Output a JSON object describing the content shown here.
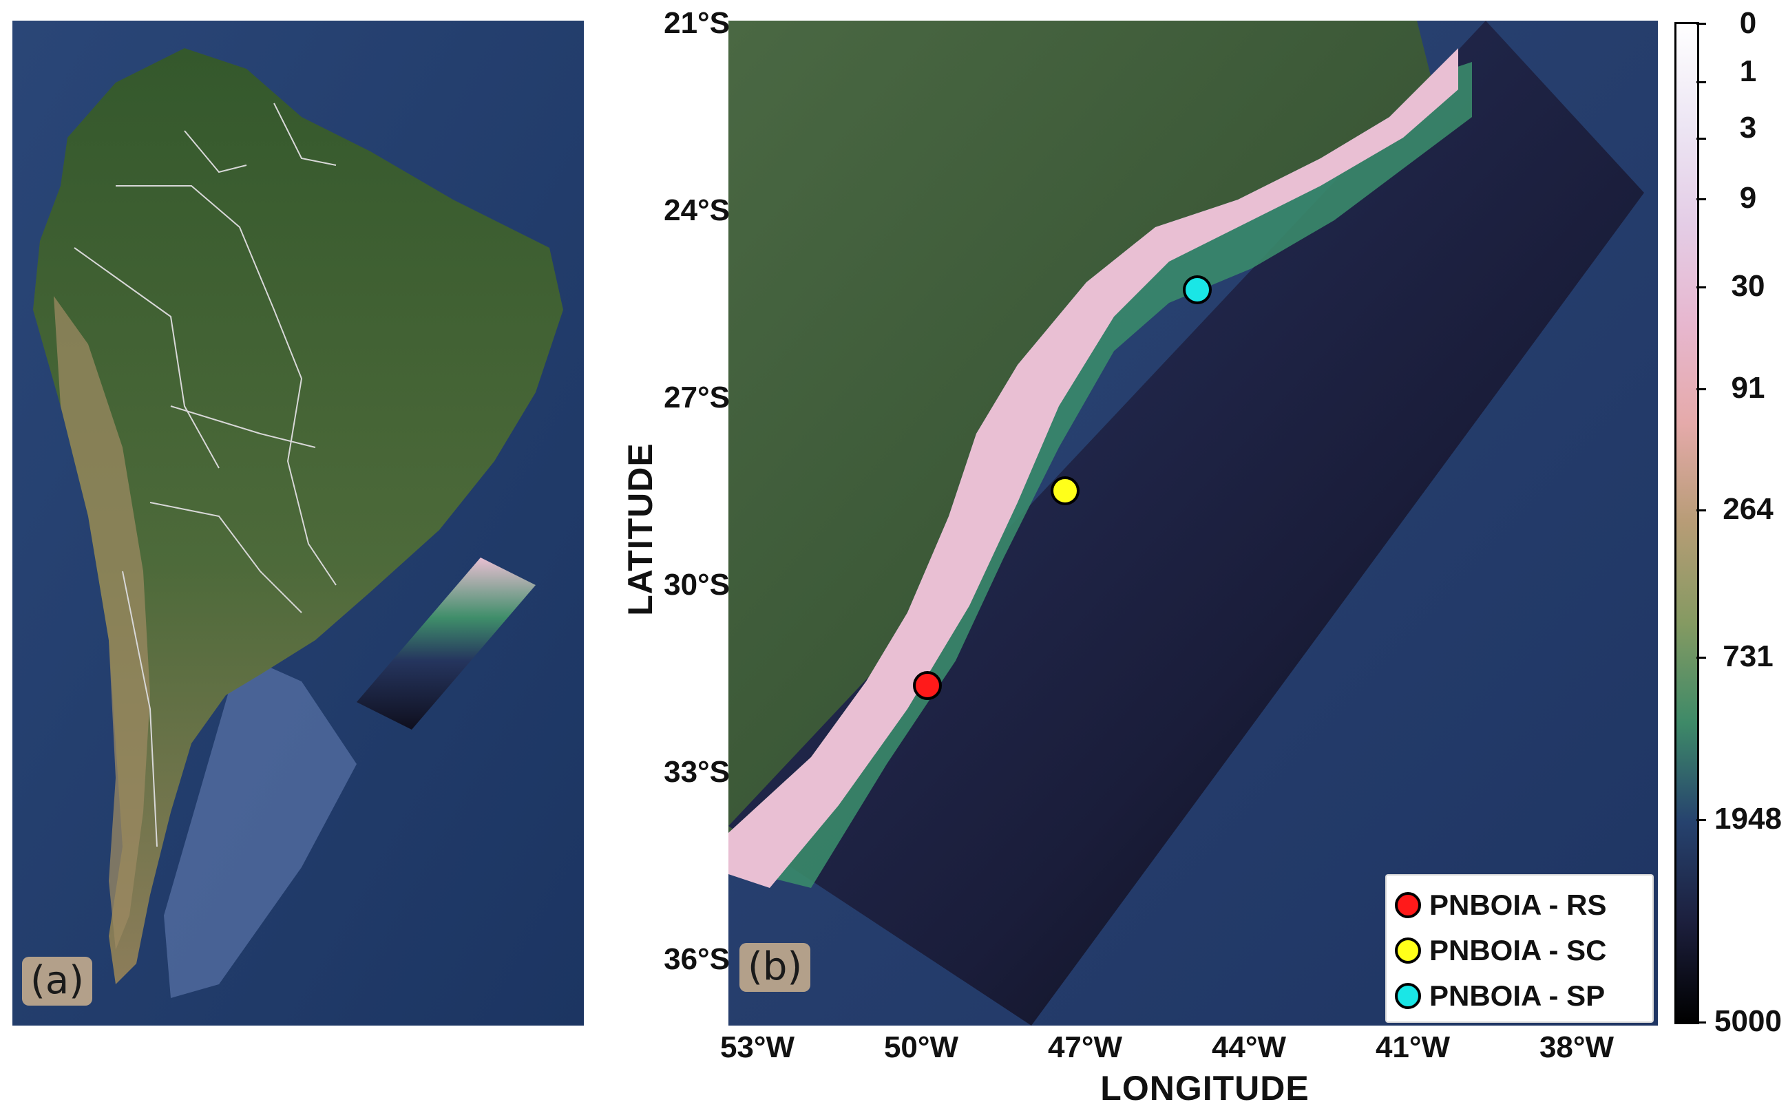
{
  "panels": {
    "a": {
      "tag": "(a)"
    },
    "b": {
      "tag": "(b)"
    }
  },
  "axes": {
    "xlabel": "LONGITUDE",
    "ylabel": "LATITUDE",
    "latitude_ticks": [
      "21°S",
      "24°S",
      "27°S",
      "30°S",
      "33°S",
      "36°S"
    ],
    "longitude_ticks": [
      "53°W",
      "50°W",
      "47°W",
      "44°W",
      "41°W",
      "38°W"
    ]
  },
  "colorbar": {
    "ticks": [
      "0",
      "1",
      "3",
      "9",
      "30",
      "91",
      "264",
      "731",
      "1948",
      "5000"
    ],
    "colors": [
      "#ffffff",
      "#ede6f4",
      "#e4cde6",
      "#e7b7cf",
      "#e5aaaa",
      "#b79c76",
      "#859a62",
      "#3e8a68",
      "#26426e",
      "#1c1f3d",
      "#000000"
    ],
    "scale": "log"
  },
  "legend": {
    "items": [
      {
        "label": "PNBOIA - RS",
        "color": "#ff1a1a"
      },
      {
        "label": "PNBOIA - SC",
        "color": "#ffff1a"
      },
      {
        "label": "PNBOIA - SP",
        "color": "#1ae6e6"
      }
    ]
  },
  "buoys": [
    {
      "name": "PNBOIA - RS",
      "lon": -49.8,
      "lat": -31.6,
      "color": "#ff1a1a"
    },
    {
      "name": "PNBOIA - SC",
      "lon": -47.4,
      "lat": -28.5,
      "color": "#ffff1a"
    },
    {
      "name": "PNBOIA - SP",
      "lon": -45.0,
      "lat": -25.3,
      "color": "#1ae6e6"
    }
  ],
  "colors": {
    "ocean": "#223a6b",
    "land": "#3d5a34",
    "shelf": "#e9bfd3"
  }
}
